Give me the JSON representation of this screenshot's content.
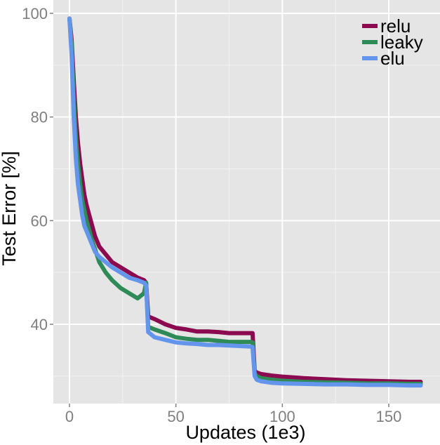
{
  "chart_data": {
    "type": "line",
    "title": "",
    "xlabel": "Updates (1e3)",
    "ylabel": "Test Error [%]",
    "xlim": [
      -7,
      175
    ],
    "ylim": [
      26,
      100
    ],
    "xticks": [
      0,
      50,
      100,
      150
    ],
    "yticks": [
      40,
      60,
      80,
      100
    ],
    "xtick_labels": [
      "0",
      "50",
      "100",
      "150"
    ],
    "ytick_labels": [
      "40",
      "60",
      "80",
      "100"
    ],
    "grid": true,
    "legend_position": "top-right",
    "background": "#e5e5e5",
    "series": [
      {
        "name": "relu",
        "color": "#8b0a50",
        "points": [
          [
            0,
            99
          ],
          [
            1,
            95
          ],
          [
            2,
            87
          ],
          [
            3,
            80
          ],
          [
            4,
            75
          ],
          [
            5,
            71
          ],
          [
            6,
            68
          ],
          [
            7,
            65
          ],
          [
            8,
            63
          ],
          [
            10,
            60
          ],
          [
            12,
            57
          ],
          [
            14,
            55
          ],
          [
            17,
            53.5
          ],
          [
            20,
            52
          ],
          [
            24,
            51
          ],
          [
            28,
            50
          ],
          [
            32,
            49
          ],
          [
            35,
            48.5
          ],
          [
            36,
            48
          ],
          [
            37,
            41.5
          ],
          [
            40,
            41
          ],
          [
            45,
            40
          ],
          [
            50,
            39.3
          ],
          [
            55,
            39
          ],
          [
            60,
            38.6
          ],
          [
            65,
            38.6
          ],
          [
            70,
            38.5
          ],
          [
            75,
            38.3
          ],
          [
            80,
            38.3
          ],
          [
            85,
            38.3
          ],
          [
            86,
            38.3
          ],
          [
            87,
            31
          ],
          [
            88,
            30.7
          ],
          [
            90,
            30.4
          ],
          [
            95,
            30.1
          ],
          [
            100,
            29.9
          ],
          [
            110,
            29.6
          ],
          [
            120,
            29.4
          ],
          [
            130,
            29.2
          ],
          [
            140,
            29.1
          ],
          [
            150,
            29
          ],
          [
            160,
            28.9
          ],
          [
            165,
            28.9
          ]
        ]
      },
      {
        "name": "leaky",
        "color": "#2e8b57",
        "points": [
          [
            0,
            99
          ],
          [
            1,
            94
          ],
          [
            2,
            84
          ],
          [
            3,
            76
          ],
          [
            4,
            71
          ],
          [
            5,
            67
          ],
          [
            6,
            64
          ],
          [
            7,
            62
          ],
          [
            8,
            60
          ],
          [
            10,
            57
          ],
          [
            12,
            54.5
          ],
          [
            14,
            52
          ],
          [
            17,
            50
          ],
          [
            20,
            48.5
          ],
          [
            24,
            47
          ],
          [
            28,
            46
          ],
          [
            32,
            45
          ],
          [
            35,
            46
          ],
          [
            36,
            48
          ],
          [
            37,
            39.5
          ],
          [
            40,
            39
          ],
          [
            45,
            38.3
          ],
          [
            50,
            37.5
          ],
          [
            55,
            37.2
          ],
          [
            60,
            37
          ],
          [
            65,
            37
          ],
          [
            70,
            36.8
          ],
          [
            75,
            36.6
          ],
          [
            80,
            36.6
          ],
          [
            85,
            36.6
          ],
          [
            86,
            36.5
          ],
          [
            87,
            30.5
          ],
          [
            88,
            30
          ],
          [
            90,
            29.6
          ],
          [
            95,
            29.3
          ],
          [
            100,
            29.1
          ],
          [
            110,
            28.9
          ],
          [
            120,
            28.8
          ],
          [
            130,
            28.7
          ],
          [
            140,
            28.6
          ],
          [
            150,
            28.6
          ],
          [
            160,
            28.5
          ],
          [
            165,
            28.5
          ]
        ]
      },
      {
        "name": "elu",
        "color": "#6495ed",
        "points": [
          [
            0,
            99
          ],
          [
            1,
            92
          ],
          [
            2,
            80
          ],
          [
            3,
            72
          ],
          [
            4,
            67
          ],
          [
            5,
            64
          ],
          [
            6,
            61
          ],
          [
            7,
            59
          ],
          [
            8,
            58
          ],
          [
            10,
            56
          ],
          [
            12,
            54
          ],
          [
            14,
            53
          ],
          [
            17,
            52
          ],
          [
            20,
            51
          ],
          [
            24,
            50
          ],
          [
            28,
            49
          ],
          [
            32,
            48.5
          ],
          [
            35,
            48
          ],
          [
            36,
            47.5
          ],
          [
            37,
            38.5
          ],
          [
            40,
            37.5
          ],
          [
            45,
            37
          ],
          [
            50,
            36.5
          ],
          [
            55,
            36.3
          ],
          [
            60,
            36.2
          ],
          [
            65,
            36
          ],
          [
            70,
            36
          ],
          [
            75,
            35.9
          ],
          [
            80,
            35.8
          ],
          [
            85,
            35.7
          ],
          [
            86,
            35.6
          ],
          [
            87,
            30
          ],
          [
            88,
            29.3
          ],
          [
            90,
            29
          ],
          [
            95,
            28.7
          ],
          [
            100,
            28.6
          ],
          [
            110,
            28.5
          ],
          [
            120,
            28.4
          ],
          [
            130,
            28.4
          ],
          [
            140,
            28.3
          ],
          [
            150,
            28.3
          ],
          [
            160,
            28.2
          ],
          [
            165,
            28.2
          ]
        ]
      }
    ]
  }
}
